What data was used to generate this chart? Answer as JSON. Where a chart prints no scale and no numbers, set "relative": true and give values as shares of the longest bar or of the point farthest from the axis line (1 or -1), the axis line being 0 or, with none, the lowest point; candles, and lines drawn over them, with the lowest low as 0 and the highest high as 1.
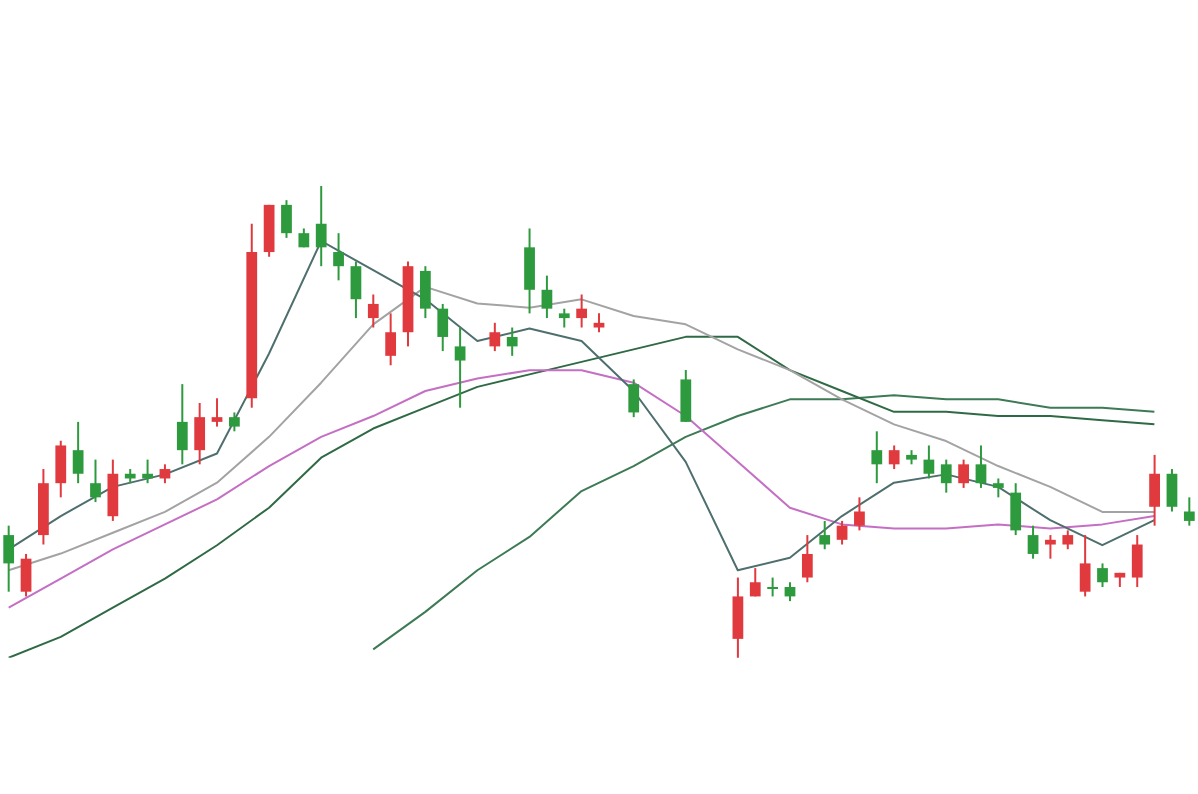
{
  "chart_data": [
    {
      "type": "candlestick",
      "relative": true,
      "categories": [
        null,
        null,
        null,
        null,
        null,
        null,
        null,
        null,
        null,
        null,
        null,
        null,
        null,
        null,
        null,
        null,
        null,
        null,
        null,
        null,
        null,
        null,
        null,
        null,
        null,
        null,
        null,
        null,
        null,
        null,
        null,
        null,
        null,
        null,
        null,
        null,
        null,
        null,
        null,
        null,
        null,
        null,
        null,
        null,
        null,
        null,
        null,
        null,
        null,
        null,
        null,
        null,
        null,
        null,
        null,
        null,
        null,
        null,
        null,
        null,
        null,
        null,
        null,
        null,
        null,
        null,
        null,
        null,
        null
      ],
      "ohlc": [
        [
          0.26,
          0.28,
          0.14,
          0.2
        ],
        [
          0.14,
          0.22,
          0.13,
          0.21
        ],
        [
          0.26,
          0.4,
          0.24,
          0.37
        ],
        [
          0.37,
          0.46,
          0.34,
          0.45
        ],
        [
          0.44,
          0.5,
          0.37,
          0.39
        ],
        [
          0.37,
          0.42,
          0.33,
          0.34
        ],
        [
          0.3,
          0.42,
          0.29,
          0.39
        ],
        [
          0.39,
          0.4,
          0.37,
          0.38
        ],
        [
          0.39,
          0.42,
          0.37,
          0.38
        ],
        [
          0.38,
          0.41,
          0.37,
          0.4
        ],
        [
          0.5,
          0.58,
          0.41,
          0.44
        ],
        [
          0.44,
          0.54,
          0.41,
          0.51
        ],
        [
          0.5,
          0.55,
          0.49,
          0.51
        ],
        [
          0.51,
          0.52,
          0.48,
          0.49
        ],
        [
          0.55,
          0.92,
          0.53,
          0.86
        ],
        [
          0.86,
          0.96,
          0.85,
          0.96
        ],
        [
          0.96,
          0.97,
          0.89,
          0.9
        ],
        [
          0.9,
          0.91,
          0.87,
          0.87
        ],
        [
          0.92,
          1,
          0.83,
          0.87
        ],
        [
          0.86,
          0.9,
          0.8,
          0.83
        ],
        [
          0.83,
          0.84,
          0.72,
          0.76
        ],
        [
          0.72,
          0.77,
          0.7,
          0.75
        ],
        [
          0.64,
          0.73,
          0.62,
          0.69
        ],
        [
          0.69,
          0.84,
          0.66,
          0.83
        ],
        [
          0.82,
          0.83,
          0.72,
          0.74
        ],
        [
          0.74,
          0.75,
          0.65,
          0.68
        ],
        [
          0.66,
          0.7,
          0.53,
          0.63
        ],
        null,
        [
          0.66,
          0.71,
          0.65,
          0.69
        ],
        [
          0.68,
          0.7,
          0.64,
          0.66
        ],
        [
          0.87,
          0.91,
          0.73,
          0.78
        ],
        [
          0.78,
          0.81,
          0.72,
          0.74
        ],
        [
          0.73,
          0.74,
          0.7,
          0.72
        ],
        [
          0.72,
          0.77,
          0.7,
          0.74
        ],
        [
          0.7,
          0.73,
          0.69,
          0.71
        ],
        null,
        [
          0.58,
          0.59,
          0.51,
          0.52
        ],
        null,
        null,
        [
          0.59,
          0.61,
          0.5,
          0.5
        ],
        null,
        null,
        [
          0.04,
          0.17,
          0,
          0.13
        ],
        [
          0.13,
          0.19,
          0.13,
          0.16
        ],
        [
          0.15,
          0.17,
          0.13,
          0.15
        ],
        [
          0.15,
          0.16,
          0.12,
          0.13
        ],
        [
          0.17,
          0.26,
          0.16,
          0.22
        ],
        [
          0.26,
          0.29,
          0.23,
          0.24
        ],
        [
          0.25,
          0.29,
          0.24,
          0.28
        ],
        [
          0.28,
          0.34,
          0.27,
          0.31
        ],
        [
          0.44,
          0.48,
          0.37,
          0.41
        ],
        [
          0.41,
          0.45,
          0.4,
          0.44
        ],
        [
          0.43,
          0.44,
          0.41,
          0.42
        ],
        [
          0.42,
          0.45,
          0.38,
          0.39
        ],
        [
          0.41,
          0.42,
          0.35,
          0.37
        ],
        [
          0.37,
          0.42,
          0.36,
          0.41
        ],
        [
          0.41,
          0.45,
          0.36,
          0.37
        ],
        [
          0.37,
          0.38,
          0.34,
          0.36
        ],
        [
          0.35,
          0.37,
          0.26,
          0.27
        ],
        [
          0.26,
          0.28,
          0.21,
          0.22
        ],
        [
          0.24,
          0.26,
          0.21,
          0.25
        ],
        [
          0.24,
          0.27,
          0.23,
          0.26
        ],
        [
          0.14,
          0.26,
          0.13,
          0.2
        ],
        [
          0.19,
          0.2,
          0.15,
          0.16
        ],
        [
          0.17,
          0.18,
          0.15,
          0.18
        ],
        [
          0.17,
          0.26,
          0.15,
          0.24
        ],
        [
          0.32,
          0.43,
          0.28,
          0.39
        ],
        [
          0.39,
          0.4,
          0.31,
          0.32
        ],
        [
          0.31,
          0.34,
          0.28,
          0.29
        ]
      ],
      "colors": [
        "#2e9a3e",
        "#e0393e",
        "#e0393e",
        "#e0393e",
        "#2e9a3e",
        "#2e9a3e",
        "#e0393e",
        "#2e9a3e",
        "#2e9a3e",
        "#e0393e",
        "#2e9a3e",
        "#e0393e",
        "#e0393e",
        "#2e9a3e",
        "#e0393e",
        "#e0393e",
        "#2e9a3e",
        "#2e9a3e",
        "#2e9a3e",
        "#2e9a3e",
        "#2e9a3e",
        "#e0393e",
        "#e0393e",
        "#e0393e",
        "#2e9a3e",
        "#2e9a3e",
        "#2e9a3e",
        null,
        "#e0393e",
        "#2e9a3e",
        "#2e9a3e",
        "#2e9a3e",
        "#2e9a3e",
        "#e0393e",
        "#e0393e",
        null,
        "#2e9a3e",
        null,
        null,
        "#2e9a3e",
        null,
        null,
        "#e0393e",
        "#e0393e",
        "#2e9a3e",
        "#2e9a3e",
        "#e0393e",
        "#2e9a3e",
        "#e0393e",
        "#e0393e",
        "#2e9a3e",
        "#e0393e",
        "#2e9a3e",
        "#2e9a3e",
        "#2e9a3e",
        "#e0393e",
        "#2e9a3e",
        "#2e9a3e",
        "#2e9a3e",
        "#2e9a3e",
        "#e0393e",
        "#e0393e",
        "#e0393e",
        "#2e9a3e",
        "#e0393e",
        "#e0393e",
        "#e0393e",
        "#2e9a3e",
        "#2e9a3e"
      ]
    },
    {
      "type": "line",
      "relative": true,
      "categories": [
        null,
        null,
        null,
        null,
        null,
        null,
        null,
        null,
        null,
        null,
        null,
        null,
        null,
        null,
        null,
        null,
        null,
        null,
        null,
        null,
        null,
        null,
        null
      ],
      "series": [
        {
          "color": "#4f6f6f",
          "values": [
            0.26,
            0.34,
            0.41,
            0.44,
            0.49,
            0.73,
            1,
            0.93,
            0.86,
            0.76,
            0.79,
            0.76,
            0.64,
            0.47,
            0.21,
            0.24,
            0.34,
            0.42,
            0.44,
            0.41,
            0.33,
            0.27,
            0.33
          ]
        },
        {
          "color": "#a3a3a3",
          "values": [
            0.21,
            0.25,
            0.3,
            0.35,
            0.42,
            0.53,
            0.66,
            0.8,
            0.89,
            0.85,
            0.84,
            0.86,
            0.82,
            0.8,
            0.74,
            0.69,
            0.62,
            0.56,
            0.52,
            0.46,
            0.41,
            0.35,
            0.35
          ]
        },
        {
          "color": "#c46fc4",
          "values": [
            0.12,
            0.19,
            0.26,
            0.32,
            0.38,
            0.46,
            0.53,
            0.58,
            0.64,
            0.67,
            0.69,
            0.69,
            0.66,
            0.58,
            0.47,
            0.36,
            0.32,
            0.31,
            0.31,
            0.32,
            0.31,
            0.32,
            0.34
          ]
        },
        {
          "color": "#2f6a45",
          "values": [
            0,
            0.05,
            0.12,
            0.19,
            0.27,
            0.36,
            0.48,
            0.55,
            0.6,
            0.65,
            0.68,
            0.71,
            0.74,
            0.77,
            0.77,
            0.69,
            0.64,
            0.59,
            0.59,
            0.58,
            0.58,
            0.57,
            0.56
          ]
        },
        {
          "color": "#3d7a55",
          "values": [
            null,
            null,
            null,
            null,
            null,
            null,
            null,
            0.02,
            0.11,
            0.21,
            0.29,
            0.4,
            0.46,
            0.53,
            0.58,
            0.62,
            0.62,
            0.63,
            0.62,
            0.62,
            0.6,
            0.6,
            0.59
          ]
        }
      ]
    }
  ]
}
